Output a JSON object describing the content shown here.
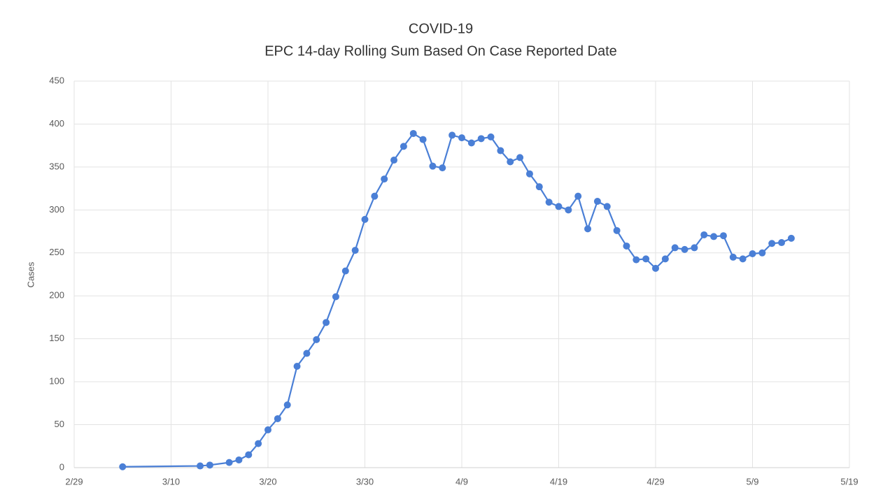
{
  "chart_data": {
    "type": "line",
    "title": "COVID-19",
    "subtitle": "EPC 14-day Rolling Sum Based On Case Reported Date",
    "y_label": "Cases",
    "x": [
      "3/5",
      "3/13",
      "3/14",
      "3/16",
      "3/17",
      "3/18",
      "3/19",
      "3/20",
      "3/21",
      "3/22",
      "3/23",
      "3/24",
      "3/25",
      "3/26",
      "3/27",
      "3/28",
      "3/29",
      "3/30",
      "3/31",
      "4/1",
      "4/2",
      "4/3",
      "4/4",
      "4/5",
      "4/6",
      "4/7",
      "4/8",
      "4/9",
      "4/10",
      "4/11",
      "4/12",
      "4/13",
      "4/14",
      "4/15",
      "4/16",
      "4/17",
      "4/18",
      "4/19",
      "4/20",
      "4/21",
      "4/22",
      "4/23",
      "4/24",
      "4/25",
      "4/26",
      "4/27",
      "4/28",
      "4/29",
      "4/30",
      "5/1",
      "5/2",
      "5/3",
      "5/4",
      "5/5",
      "5/6",
      "5/7",
      "5/8",
      "5/9",
      "5/10",
      "5/11",
      "5/12",
      "5/13"
    ],
    "series": [
      {
        "name": "Cases",
        "color": "#4a7fd6",
        "values": [
          1,
          2,
          3,
          6,
          9,
          15,
          28,
          44,
          57,
          73,
          118,
          133,
          149,
          169,
          199,
          229,
          253,
          289,
          316,
          336,
          358,
          374,
          389,
          382,
          351,
          349,
          387,
          384,
          378,
          383,
          385,
          369,
          356,
          361,
          342,
          327,
          309,
          304,
          300,
          316,
          278,
          310,
          304,
          276,
          258,
          242,
          243,
          232,
          243,
          256,
          254,
          256,
          271,
          269,
          270,
          245,
          243,
          249,
          250,
          261,
          262,
          267
        ]
      }
    ],
    "xlim": [
      "2/29",
      "5/19"
    ],
    "xticks": [
      "2/29",
      "3/10",
      "3/20",
      "3/30",
      "4/9",
      "4/19",
      "4/29",
      "5/9",
      "5/19"
    ],
    "ylim": [
      0,
      450
    ],
    "yticks": [
      0,
      50,
      100,
      150,
      200,
      250,
      300,
      350,
      400,
      450
    ],
    "grid": true
  }
}
